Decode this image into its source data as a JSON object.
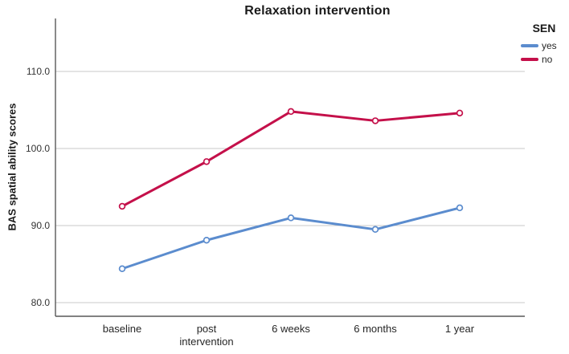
{
  "title": "Relaxation intervention",
  "y_axis": {
    "label": "BAS spatial ability scores",
    "tick_labels": [
      "80.0",
      "90.0",
      "100.0",
      "110.0"
    ]
  },
  "x_axis": {
    "labels": [
      "baseline",
      "post intervention",
      "6 weeks",
      "6 months",
      "1 year"
    ]
  },
  "legend": {
    "title": "SEN",
    "items": [
      {
        "label": "yes",
        "color": "#5b8cce"
      },
      {
        "label": "no",
        "color": "#c4104a"
      }
    ]
  },
  "colors": {
    "grid": "#c8c8c8",
    "axis": "#595959",
    "series_yes": "#5b8cce",
    "series_no": "#c4104a",
    "marker_fill": "#ffffff"
  },
  "chart_data": {
    "type": "line",
    "categories": [
      "baseline",
      "post intervention",
      "6 weeks",
      "6 months",
      "1 year"
    ],
    "series": [
      {
        "name": "yes",
        "color": "#5b8cce",
        "values": [
          84.4,
          88.1,
          91.0,
          89.5,
          92.3
        ]
      },
      {
        "name": "no",
        "color": "#c4104a",
        "values": [
          92.5,
          98.3,
          104.8,
          103.6,
          104.6
        ]
      }
    ],
    "title": "Relaxation intervention",
    "xlabel": "",
    "ylabel": "BAS spatial ability scores",
    "ylim": [
      78,
      117
    ],
    "yticks": [
      80,
      90,
      100,
      110
    ],
    "ytick_labels": [
      "80.0",
      "90.0",
      "100.0",
      "110.0"
    ],
    "grid": true,
    "legend_title": "SEN",
    "legend_position": "top-right",
    "marker": "circle-open"
  }
}
